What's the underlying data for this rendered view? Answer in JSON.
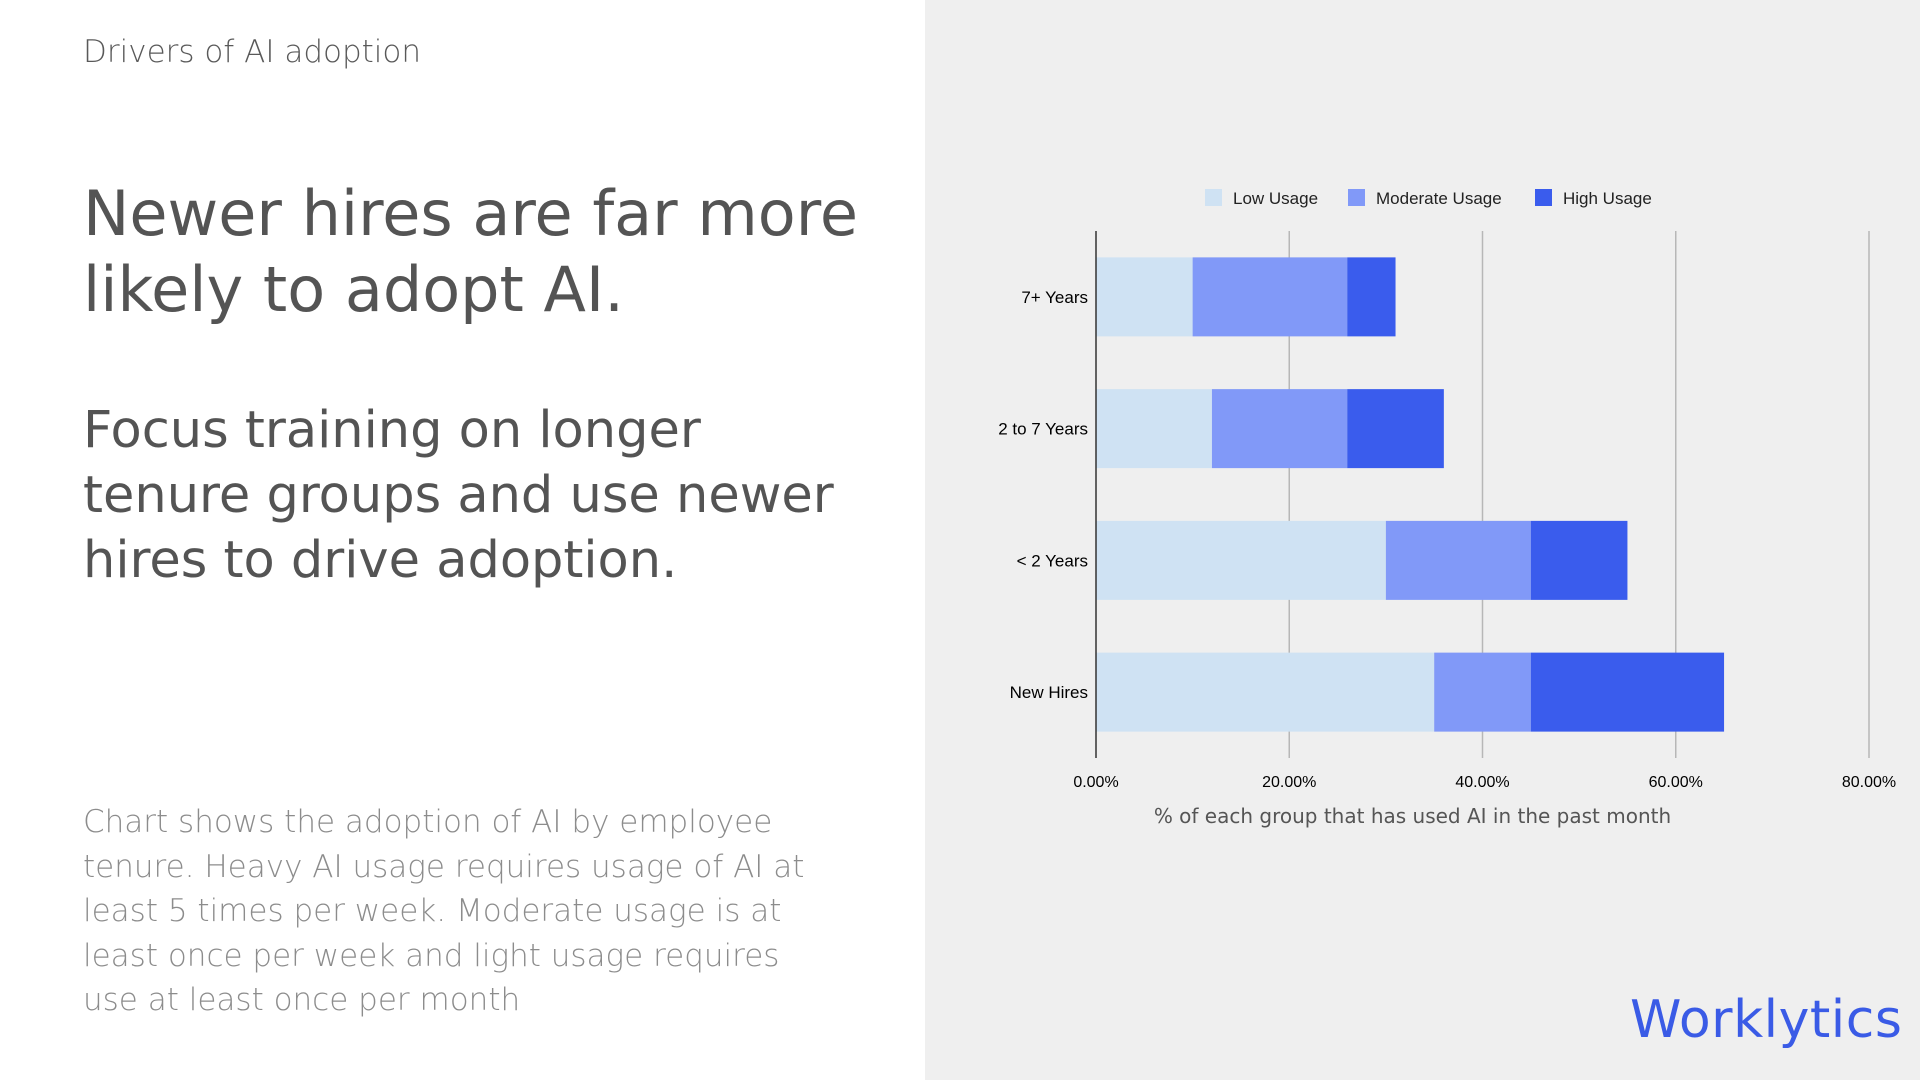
{
  "slide": {
    "kicker": "Drivers of AI adoption",
    "headline": "Newer hires are far more likely to adopt AI.",
    "subhead": "Focus training on longer tenure groups and use newer hires to drive adoption.",
    "note": "Chart shows the adoption of AI by employee tenure. Heavy AI usage requires usage of AI at least 5 times per week. Moderate usage is at least once per week and  light usage requires use at least once per month",
    "logo": "Worklytics"
  },
  "chart_data": {
    "type": "bar",
    "orientation": "horizontal",
    "stacked": true,
    "categories": [
      "7+ Years",
      "2 to 7 Years",
      "< 2 Years",
      "New Hires"
    ],
    "series": [
      {
        "name": "Low Usage",
        "color": "#cfe2f3",
        "values": [
          10,
          12,
          30,
          35
        ]
      },
      {
        "name": "Moderate Usage",
        "color": "#8199f8",
        "values": [
          16,
          14,
          15,
          10
        ]
      },
      {
        "name": "High Usage",
        "color": "#3a5ced",
        "values": [
          5,
          10,
          10,
          20
        ]
      }
    ],
    "xlabel": "% of each group that has used AI in the past month",
    "ylabel": "",
    "xlim": [
      0,
      80
    ],
    "xticks": [
      "0.00%",
      "20.00%",
      "40.00%",
      "60.00%",
      "80.00%"
    ],
    "grid": true,
    "legend": "top"
  }
}
